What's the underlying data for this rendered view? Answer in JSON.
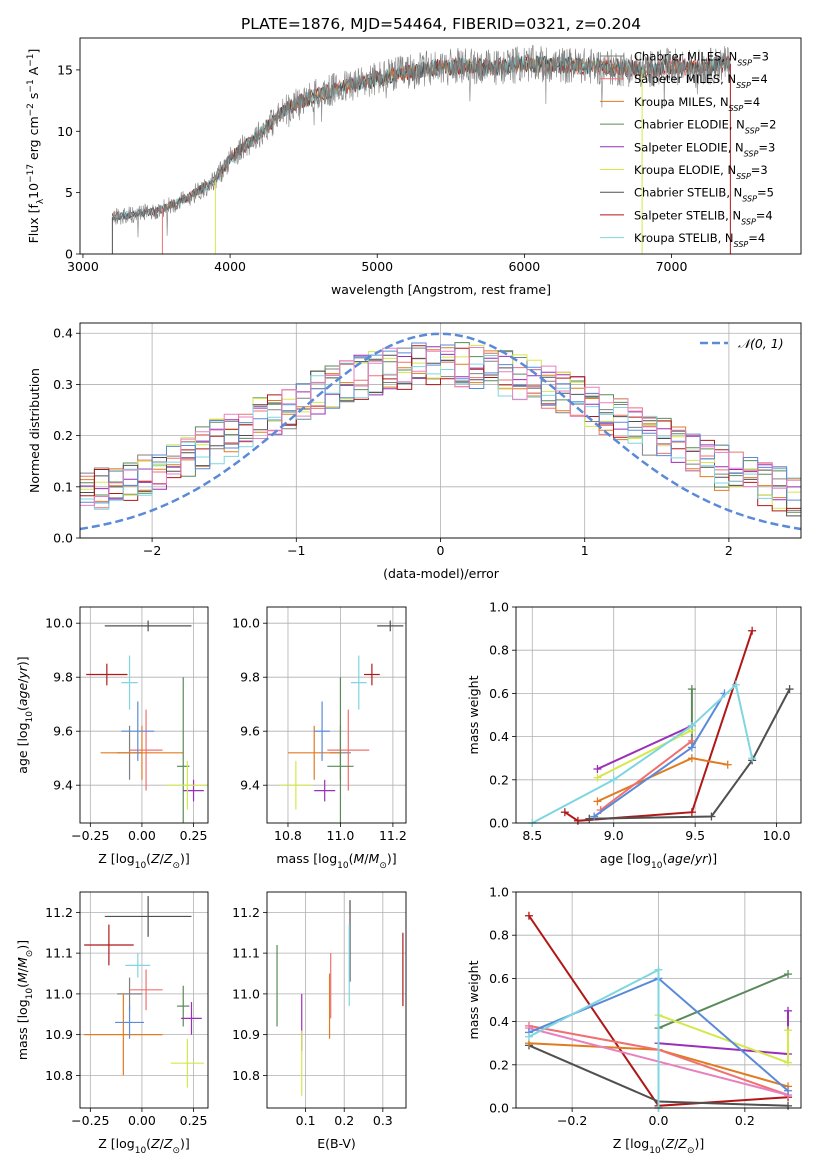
{
  "figure_title": "PLATE=1876, MJD=54464, FIBERID=0321, z=0.204",
  "colors": {
    "Chabrier MILES": "#808080",
    "Salpeter MILES": "#f07070",
    "Kroupa MILES": "#e07b20",
    "Chabrier ELODIE": "#5a8a5a",
    "Salpeter ELODIE": "#9a2fb8",
    "Kroupa ELODIE": "#d4e84c",
    "Chabrier STELIB": "#505050",
    "Salpeter STELIB": "#b01818",
    "Kroupa STELIB": "#7fd6e0",
    "blue": "#5a8ad8",
    "pink": "#e880c0"
  },
  "chart_data": [
    {
      "id": "spectrum",
      "type": "line",
      "xlabel": "wavelength [Angstrom, rest frame]",
      "ylabel": "Flux [f$_\\lambda$10$^{-17}$ erg cm$^{-2}$ s$^{-1}$ A$^{-1}$]",
      "ylabel_parts": [
        "Flux [f",
        "λ",
        "10",
        "−17",
        " erg cm",
        "−2",
        " s",
        "−1",
        " A",
        "−1",
        "]"
      ],
      "xlim": [
        2980,
        7880
      ],
      "ylim": [
        0,
        17.6
      ],
      "xticks": [
        3000,
        4000,
        5000,
        6000,
        7000
      ],
      "yticks": [
        0,
        5,
        10,
        15
      ],
      "grid": false,
      "legend_position": "right",
      "continuum": {
        "x": [
          3200,
          3300,
          3500,
          3700,
          3900,
          4000,
          4200,
          4400,
          4600,
          4800,
          5000,
          5200,
          5400,
          5600,
          5800,
          6000,
          6200,
          6400,
          6600,
          6800,
          7000,
          7200,
          7400
        ],
        "y": [
          3.0,
          3.2,
          3.5,
          4.5,
          6.0,
          7.8,
          9.8,
          12.0,
          13.0,
          13.7,
          14.3,
          14.8,
          15.2,
          15.3,
          15.2,
          15.5,
          15.4,
          15.3,
          15.2,
          15.0,
          15.3,
          15.2,
          15.5
        ]
      },
      "series": [
        {
          "name": "Chabrier MILES",
          "nssp": "3"
        },
        {
          "name": "Salpeter MILES",
          "nssp": "4"
        },
        {
          "name": "Kroupa MILES",
          "nssp": "4"
        },
        {
          "name": "Chabrier ELODIE",
          "nssp": "2"
        },
        {
          "name": "Salpeter ELODIE",
          "nssp": "3"
        },
        {
          "name": "Kroupa ELODIE",
          "nssp": "3"
        },
        {
          "name": "Chabrier STELIB",
          "nssp": "5"
        },
        {
          "name": "Salpeter STELIB",
          "nssp": "4"
        },
        {
          "name": "Kroupa STELIB",
          "nssp": "4"
        }
      ]
    },
    {
      "id": "residuals",
      "type": "bar",
      "xlabel": "(data-model)/error",
      "ylabel": "Normed distribution",
      "xlim": [
        -2.5,
        2.5
      ],
      "ylim": [
        0,
        0.42
      ],
      "xticks": [
        -2,
        -1,
        0,
        1,
        2
      ],
      "yticks": [
        0.0,
        0.1,
        0.2,
        0.3,
        0.4
      ],
      "grid": true,
      "legend_position": "top-right",
      "reference_curve": {
        "name": "𝒩(0, 1)",
        "mean": 0,
        "sigma": 1
      }
    },
    {
      "id": "age_vs_Z",
      "type": "scatter",
      "xlabel": "Z [log10(Z/Z☉)]",
      "ylabel": "age  [log10(age/yr)]",
      "xlim": [
        -0.3,
        0.32
      ],
      "ylim": [
        9.26,
        10.06
      ],
      "xticks": [
        -0.25,
        0.0,
        0.25
      ],
      "yticks": [
        9.4,
        9.6,
        9.8,
        10.0
      ],
      "grid": true,
      "points": [
        {
          "series": "Chabrier MILES",
          "x": -0.06,
          "xerr": 0.06,
          "y": 9.52,
          "yerr": 0.1
        },
        {
          "series": "Salpeter MILES",
          "x": 0.02,
          "xerr": 0.08,
          "y": 9.53,
          "yerr": 0.15
        },
        {
          "series": "Kroupa MILES",
          "x": 0.0,
          "xerr": 0.2,
          "y": 9.52,
          "yerr": 0.1
        },
        {
          "series": "Chabrier ELODIE",
          "x": 0.2,
          "xerr": 0.03,
          "y": 9.47,
          "yerr": 0.33
        },
        {
          "series": "Salpeter ELODIE",
          "x": 0.25,
          "xerr": 0.05,
          "y": 9.38,
          "yerr": 0.04
        },
        {
          "series": "Kroupa ELODIE",
          "x": 0.22,
          "xerr": 0.1,
          "y": 9.4,
          "yerr": 0.09
        },
        {
          "series": "Chabrier STELIB",
          "x": 0.03,
          "xerr": 0.21,
          "y": 9.99,
          "yerr": 0.02
        },
        {
          "series": "Salpeter STELIB",
          "x": -0.17,
          "xerr": 0.1,
          "y": 9.81,
          "yerr": 0.04
        },
        {
          "series": "Kroupa STELIB",
          "x": -0.06,
          "xerr": 0.04,
          "y": 9.78,
          "yerr": 0.1
        },
        {
          "series": "blue",
          "x": -0.02,
          "xerr": 0.08,
          "y": 9.6,
          "yerr": 0.11
        }
      ]
    },
    {
      "id": "age_vs_mass",
      "type": "scatter",
      "xlabel": "mass [log10(M/M☉)]",
      "ylabel": "",
      "xlim": [
        10.72,
        11.25
      ],
      "ylim": [
        9.26,
        10.06
      ],
      "xticks": [
        10.8,
        11.0,
        11.2
      ],
      "yticks": [
        9.4,
        9.6,
        9.8,
        10.0
      ],
      "grid": true,
      "points": [
        {
          "series": "Chabrier MILES",
          "x": 11.0,
          "xerr": 0.04,
          "y": 9.52,
          "yerr": 0.1
        },
        {
          "series": "Salpeter MILES",
          "x": 11.03,
          "xerr": 0.08,
          "y": 9.53,
          "yerr": 0.15
        },
        {
          "series": "Kroupa MILES",
          "x": 10.9,
          "xerr": 0.1,
          "y": 9.52,
          "yerr": 0.1
        },
        {
          "series": "Chabrier ELODIE",
          "x": 11.0,
          "xerr": 0.05,
          "y": 9.47,
          "yerr": 0.33
        },
        {
          "series": "Salpeter ELODIE",
          "x": 10.94,
          "xerr": 0.04,
          "y": 9.38,
          "yerr": 0.04
        },
        {
          "series": "Kroupa ELODIE",
          "x": 10.83,
          "xerr": 0.06,
          "y": 9.4,
          "yerr": 0.09
        },
        {
          "series": "Chabrier STELIB",
          "x": 11.19,
          "xerr": 0.05,
          "y": 9.99,
          "yerr": 0.02
        },
        {
          "series": "Salpeter STELIB",
          "x": 11.12,
          "xerr": 0.03,
          "y": 9.81,
          "yerr": 0.04
        },
        {
          "series": "Kroupa STELIB",
          "x": 11.07,
          "xerr": 0.03,
          "y": 9.78,
          "yerr": 0.1
        },
        {
          "series": "blue",
          "x": 10.93,
          "xerr": 0.03,
          "y": 9.6,
          "yerr": 0.11
        }
      ]
    },
    {
      "id": "mass_weight_vs_age",
      "type": "line",
      "xlabel": "age  [log10(age/yr)]",
      "ylabel": "mass weight",
      "xlim": [
        8.4,
        10.15
      ],
      "ylim": [
        0,
        1.0
      ],
      "xticks": [
        8.5,
        9.0,
        9.5,
        10.0
      ],
      "yticks": [
        0.0,
        0.2,
        0.4,
        0.6,
        0.8,
        1.0
      ],
      "grid": true,
      "series": [
        {
          "name": "Salpeter STELIB",
          "x": [
            8.7,
            8.78,
            9.48,
            9.85
          ],
          "y": [
            0.05,
            0.01,
            0.05,
            0.89
          ]
        },
        {
          "name": "Chabrier STELIB",
          "x": [
            8.85,
            9.6,
            9.85,
            10.08
          ],
          "y": [
            0.02,
            0.03,
            0.29,
            0.62
          ]
        },
        {
          "name": "Chabrier ELODIE",
          "x": [
            9.48,
            9.48
          ],
          "y": [
            0.37,
            0.62
          ]
        },
        {
          "name": "Salpeter ELODIE",
          "x": [
            8.9,
            9.48
          ],
          "y": [
            0.25,
            0.45
          ]
        },
        {
          "name": "Kroupa ELODIE",
          "x": [
            8.9,
            9.48
          ],
          "y": [
            0.21,
            0.43
          ]
        },
        {
          "name": "Kroupa MILES",
          "x": [
            8.9,
            9.48,
            9.7
          ],
          "y": [
            0.1,
            0.3,
            0.27
          ]
        },
        {
          "name": "Salpeter MILES",
          "x": [
            8.92,
            9.48
          ],
          "y": [
            0.06,
            0.38
          ]
        },
        {
          "name": "blue",
          "x": [
            8.88,
            9.48,
            9.68
          ],
          "y": [
            0.03,
            0.35,
            0.6
          ]
        },
        {
          "name": "Kroupa STELIB",
          "x": [
            8.5,
            9.0,
            9.48,
            9.75,
            9.85
          ],
          "y": [
            0.0,
            0.2,
            0.45,
            0.64,
            0.3
          ]
        }
      ]
    },
    {
      "id": "mass_vs_Z",
      "type": "scatter",
      "xlabel": "Z [log10(Z/Z☉)]",
      "ylabel": "mass [log10(M/M☉)]",
      "xlim": [
        -0.3,
        0.32
      ],
      "ylim": [
        10.72,
        11.25
      ],
      "xticks": [
        -0.25,
        0.0,
        0.25
      ],
      "yticks": [
        10.8,
        10.9,
        11.0,
        11.1,
        11.2
      ],
      "grid": true,
      "points": [
        {
          "series": "Chabrier MILES",
          "x": -0.06,
          "xerr": 0.06,
          "y": 11.0,
          "yerr": 0.04
        },
        {
          "series": "Salpeter MILES",
          "x": 0.02,
          "xerr": 0.08,
          "y": 11.01,
          "yerr": 0.05
        },
        {
          "series": "Kroupa MILES",
          "x": -0.09,
          "xerr": 0.19,
          "y": 10.9,
          "yerr": 0.1
        },
        {
          "series": "Chabrier ELODIE",
          "x": 0.2,
          "xerr": 0.03,
          "y": 10.97,
          "yerr": 0.05
        },
        {
          "series": "Salpeter ELODIE",
          "x": 0.24,
          "xerr": 0.05,
          "y": 10.94,
          "yerr": 0.04
        },
        {
          "series": "Kroupa ELODIE",
          "x": 0.22,
          "xerr": 0.08,
          "y": 10.83,
          "yerr": 0.06
        },
        {
          "series": "Chabrier STELIB",
          "x": 0.03,
          "xerr": 0.21,
          "y": 11.19,
          "yerr": 0.05
        },
        {
          "series": "Salpeter STELIB",
          "x": -0.16,
          "xerr": 0.12,
          "y": 11.12,
          "yerr": 0.05
        },
        {
          "series": "Kroupa STELIB",
          "x": -0.02,
          "xerr": 0.06,
          "y": 11.07,
          "yerr": 0.03
        },
        {
          "series": "blue",
          "x": -0.06,
          "xerr": 0.07,
          "y": 10.93,
          "yerr": 0.04
        }
      ]
    },
    {
      "id": "mass_vs_ebv",
      "type": "scatter",
      "xlabel": "E(B-V)",
      "ylabel": "",
      "xlim": [
        0.0,
        0.36
      ],
      "ylim": [
        10.72,
        11.25
      ],
      "xticks": [
        0.1,
        0.2,
        0.3
      ],
      "yticks": [
        10.8,
        10.9,
        11.0,
        11.1,
        11.2
      ],
      "grid": true,
      "points": [
        {
          "series": "Chabrier ELODIE",
          "x": 0.026,
          "y": 11.02,
          "yerr": 0.1
        },
        {
          "series": "Salpeter ELODIE",
          "x": 0.09,
          "y": 10.93,
          "yerr": 0.07
        },
        {
          "series": "Kroupa ELODIE",
          "x": 0.09,
          "y": 10.83,
          "yerr": 0.08
        },
        {
          "series": "Kroupa MILES",
          "x": 0.162,
          "y": 10.97,
          "yerr": 0.08
        },
        {
          "series": "Salpeter MILES",
          "x": 0.165,
          "y": 11.02,
          "yerr": 0.08
        },
        {
          "series": "Chabrier STELIB",
          "x": 0.215,
          "y": 11.13,
          "yerr": 0.1
        },
        {
          "series": "Kroupa STELIB",
          "x": 0.213,
          "y": 11.07,
          "yerr": 0.1
        },
        {
          "series": "Salpeter STELIB",
          "x": 0.352,
          "y": 11.06,
          "yerr": 0.09
        }
      ]
    },
    {
      "id": "mass_weight_vs_Z",
      "type": "line",
      "xlabel": "Z [log10(Z/Z☉)]",
      "ylabel": "mass weight",
      "xlim": [
        -0.33,
        0.33
      ],
      "ylim": [
        0,
        1.0
      ],
      "xticks": [
        -0.2,
        0.0,
        0.2
      ],
      "yticks": [
        0.0,
        0.2,
        0.4,
        0.6,
        0.8,
        1.0
      ],
      "grid": true,
      "series": [
        {
          "name": "Salpeter STELIB",
          "x": [
            -0.3,
            0.0,
            0.3
          ],
          "y": [
            0.89,
            0.01,
            0.05
          ]
        },
        {
          "name": "Chabrier STELIB",
          "x": [
            -0.3,
            0.0,
            0.3
          ],
          "y": [
            0.29,
            0.03,
            0.01
          ]
        },
        {
          "name": "Chabrier ELODIE",
          "x": [
            0.0,
            0.0,
            0.3
          ],
          "y": [
            0.0,
            0.37,
            0.62
          ]
        },
        {
          "name": "Salpeter ELODIE",
          "x": [
            0.0,
            0.3,
            0.3
          ],
          "y": [
            0.3,
            0.25,
            0.45
          ]
        },
        {
          "name": "Kroupa ELODIE",
          "x": [
            0.0,
            0.3,
            0.3
          ],
          "y": [
            0.43,
            0.21,
            0.36
          ]
        },
        {
          "name": "Kroupa MILES",
          "x": [
            -0.3,
            0.0,
            0.3
          ],
          "y": [
            0.3,
            0.27,
            0.1
          ]
        },
        {
          "name": "Salpeter MILES",
          "x": [
            -0.3,
            0.0,
            0.3
          ],
          "y": [
            0.38,
            0.27,
            0.06
          ]
        },
        {
          "name": "pink",
          "x": [
            -0.3,
            0.3
          ],
          "y": [
            0.37,
            0.06
          ]
        },
        {
          "name": "blue",
          "x": [
            -0.3,
            0.0,
            0.3
          ],
          "y": [
            0.35,
            0.6,
            0.08
          ]
        },
        {
          "name": "Kroupa STELIB",
          "x": [
            -0.3,
            0.0,
            0.0
          ],
          "y": [
            0.33,
            0.64,
            0.0
          ]
        }
      ]
    }
  ]
}
